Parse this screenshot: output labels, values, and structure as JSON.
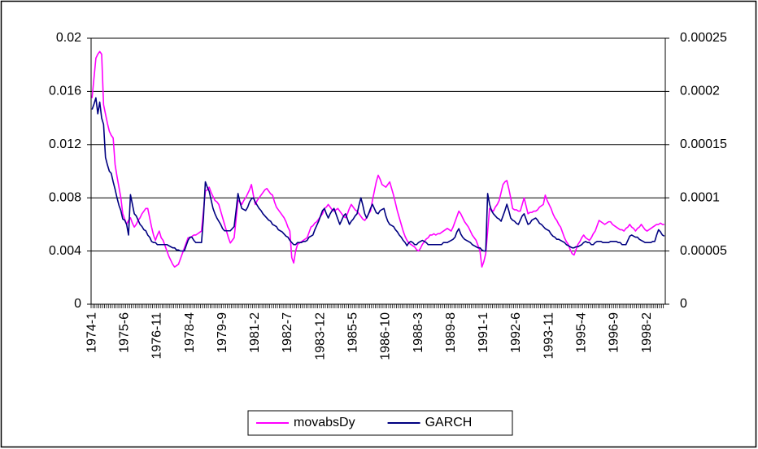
{
  "chart_data": {
    "type": "line",
    "categories": [
      "1974-1",
      null,
      null,
      null,
      null,
      null,
      null,
      null,
      null,
      null,
      null,
      null,
      null,
      null,
      null,
      null,
      null,
      "1975-6",
      null,
      null,
      null,
      null,
      null,
      null,
      null,
      null,
      null,
      null,
      null,
      null,
      null,
      null,
      null,
      null,
      "1976-11",
      null,
      null,
      null,
      null,
      null,
      null,
      null,
      null,
      null,
      null,
      null,
      null,
      null,
      null,
      null,
      null,
      "1978-4",
      null,
      null,
      null,
      null,
      null,
      null,
      null,
      null,
      null,
      null,
      null,
      null,
      null,
      null,
      null,
      null,
      "1979-9",
      null,
      null,
      null,
      null,
      null,
      null,
      null,
      null,
      null,
      null,
      null,
      null,
      null,
      null,
      null,
      null,
      "1981-2",
      null,
      null,
      null,
      null,
      null,
      null,
      null,
      null,
      null,
      null,
      null,
      null,
      null,
      null,
      null,
      null,
      "1982-7",
      null,
      null,
      null,
      null,
      null,
      null,
      null,
      null,
      null,
      null,
      null,
      null,
      null,
      null,
      null,
      null,
      "1983-12",
      null,
      null,
      null,
      null,
      null,
      null,
      null,
      null,
      null,
      null,
      null,
      null,
      null,
      null,
      null,
      null,
      "1985-5",
      null,
      null,
      null,
      null,
      null,
      null,
      null,
      null,
      null,
      null,
      null,
      null,
      null,
      null,
      null,
      null,
      "1986-10",
      null,
      null,
      null,
      null,
      null,
      null,
      null,
      null,
      null,
      null,
      null,
      null,
      null,
      null,
      null,
      null,
      "1988-3",
      null,
      null,
      null,
      null,
      null,
      null,
      null,
      null,
      null,
      null,
      null,
      null,
      null,
      null,
      null,
      null,
      "1989-8",
      null,
      null,
      null,
      null,
      null,
      null,
      null,
      null,
      null,
      null,
      null,
      null,
      null,
      null,
      null,
      null,
      "1991-1",
      null,
      null,
      null,
      null,
      null,
      null,
      null,
      null,
      null,
      null,
      null,
      null,
      null,
      null,
      null,
      null,
      "1992-6",
      null,
      null,
      null,
      null,
      null,
      null,
      null,
      null,
      null,
      null,
      null,
      null,
      null,
      null,
      null,
      null,
      "1993-11",
      null,
      null,
      null,
      null,
      null,
      null,
      null,
      null,
      null,
      null,
      null,
      null,
      null,
      null,
      null,
      null,
      "1995-4",
      null,
      null,
      null,
      null,
      null,
      null,
      null,
      null,
      null,
      null,
      null,
      null,
      null,
      null,
      null,
      null,
      "1996-9",
      null,
      null,
      null,
      null,
      null,
      null,
      null,
      null,
      null,
      null,
      null,
      null,
      null,
      null,
      null,
      null,
      "1998-2",
      null,
      null,
      null,
      null,
      null,
      null,
      null,
      null,
      null
    ],
    "series": [
      {
        "name": "movabsDy",
        "color": "#ff00ff",
        "values": [
          0.0155,
          0.017,
          0.0185,
          0.0188,
          0.019,
          0.0188,
          0.015,
          0.0143,
          0.0136,
          0.013,
          0.0127,
          0.0125,
          0.0105,
          0.0096,
          0.0088,
          0.008,
          0.0068,
          0.0064,
          0.006,
          0.0063,
          0.0065,
          0.0061,
          0.0058,
          0.006,
          0.0063,
          0.0065,
          0.0068,
          0.007,
          0.0072,
          0.0072,
          0.0065,
          0.0058,
          0.0052,
          0.0048,
          0.0052,
          0.0055,
          0.005,
          0.0048,
          0.0044,
          0.004,
          0.0036,
          0.0033,
          0.003,
          0.0028,
          0.0029,
          0.003,
          0.0034,
          0.0038,
          0.0042,
          0.0046,
          0.005,
          0.005,
          0.0051,
          0.0052,
          0.0052,
          0.0053,
          0.0054,
          0.0055,
          0.007,
          0.0085,
          0.0086,
          0.0088,
          0.0084,
          0.0081,
          0.0078,
          0.0077,
          0.0075,
          0.007,
          0.0065,
          0.006,
          0.0055,
          0.005,
          0.0046,
          0.0048,
          0.005,
          0.0064,
          0.0078,
          0.0077,
          0.0075,
          0.0078,
          0.008,
          0.0083,
          0.0086,
          0.009,
          0.0082,
          0.0075,
          0.0078,
          0.008,
          0.0082,
          0.0084,
          0.0086,
          0.0087,
          0.0085,
          0.0083,
          0.0082,
          0.0077,
          0.0073,
          0.0071,
          0.0069,
          0.0067,
          0.0065,
          0.0062,
          0.0058,
          0.0055,
          0.0035,
          0.0031,
          0.004,
          0.0045,
          0.0046,
          0.0047,
          0.0048,
          0.0049,
          0.005,
          0.0054,
          0.0058,
          0.0059,
          0.0061,
          0.0062,
          0.0064,
          0.0066,
          0.0068,
          0.0072,
          0.0073,
          0.0075,
          0.0073,
          0.0071,
          0.007,
          0.0071,
          0.0072,
          0.007,
          0.0068,
          0.0066,
          0.0065,
          0.0068,
          0.0072,
          0.0075,
          0.0073,
          0.0071,
          0.007,
          0.0068,
          0.0066,
          0.0064,
          0.0063,
          0.0065,
          0.0068,
          0.007,
          0.0078,
          0.0085,
          0.0092,
          0.0097,
          0.0094,
          0.009,
          0.0089,
          0.0088,
          0.009,
          0.0092,
          0.0087,
          0.0082,
          0.0076,
          0.007,
          0.0065,
          0.006,
          0.0055,
          0.0051,
          0.0048,
          0.0046,
          0.0045,
          0.0044,
          0.0043,
          0.0041,
          0.004,
          0.0042,
          0.0045,
          0.0047,
          0.0049,
          0.005,
          0.0052,
          0.0052,
          0.0053,
          0.0052,
          0.0053,
          0.0053,
          0.0054,
          0.0055,
          0.0056,
          0.0057,
          0.0056,
          0.0055,
          0.0058,
          0.0062,
          0.0066,
          0.007,
          0.0068,
          0.0065,
          0.0062,
          0.006,
          0.0058,
          0.0055,
          0.0052,
          0.005,
          0.0048,
          0.0044,
          0.004,
          0.0028,
          0.0032,
          0.0038,
          0.0055,
          0.0072,
          0.0071,
          0.007,
          0.0073,
          0.0075,
          0.0078,
          0.0084,
          0.009,
          0.0092,
          0.0093,
          0.0087,
          0.008,
          0.0072,
          0.0071,
          0.0071,
          0.007,
          0.007,
          0.0075,
          0.008,
          0.0074,
          0.0068,
          0.0069,
          0.0069,
          0.007,
          0.007,
          0.0071,
          0.0073,
          0.0074,
          0.0075,
          0.0082,
          0.0078,
          0.0075,
          0.0072,
          0.0068,
          0.0065,
          0.0063,
          0.006,
          0.0058,
          0.0054,
          0.005,
          0.0047,
          0.0045,
          0.0041,
          0.0038,
          0.0037,
          0.0041,
          0.0045,
          0.0047,
          0.005,
          0.0052,
          0.005,
          0.0049,
          0.0048,
          0.005,
          0.0053,
          0.0055,
          0.0059,
          0.0063,
          0.0062,
          0.0061,
          0.006,
          0.0061,
          0.0062,
          0.0062,
          0.006,
          0.0059,
          0.0058,
          0.0057,
          0.0056,
          0.0056,
          0.0055,
          0.0057,
          0.0058,
          0.006,
          0.0058,
          0.0057,
          0.0055,
          0.0057,
          0.0058,
          0.006,
          0.0058,
          0.0056,
          0.0055,
          0.0056,
          0.0057,
          0.0058,
          0.0059,
          0.006,
          0.006,
          0.0061,
          0.006,
          0.006
        ]
      },
      {
        "name": "GARCH",
        "color": "#000080",
        "axis": "y2",
        "values": [
          0.000183,
          0.000188,
          0.000194,
          0.000179,
          0.00019,
          0.000175,
          0.000169,
          0.000138,
          0.000131,
          0.000125,
          0.000123,
          0.000115,
          0.000108,
          0.0001,
          9.3e-05,
          8.8e-05,
          8e-05,
          7.9e-05,
          7.5e-05,
          6.5e-05,
          0.000103,
          9.4e-05,
          8.5e-05,
          8.3e-05,
          7.9e-05,
          7.5e-05,
          7.3e-05,
          7e-05,
          6.9e-05,
          6.5e-05,
          6.3e-05,
          5.9e-05,
          5.8e-05,
          5.8e-05,
          5.6e-05,
          5.6e-05,
          5.6e-05,
          5.6e-05,
          5.6e-05,
          5.6e-05,
          5.5e-05,
          5.4e-05,
          5.3e-05,
          5.3e-05,
          5.1e-05,
          5.1e-05,
          5e-05,
          5e-05,
          5e-05,
          5.5e-05,
          6e-05,
          6.3e-05,
          6.3e-05,
          6e-05,
          5.8e-05,
          5.8e-05,
          5.8e-05,
          5.8e-05,
          8.1e-05,
          0.000115,
          0.00011,
          0.000106,
          9.8e-05,
          9e-05,
          8.5e-05,
          8.1e-05,
          7.8e-05,
          7.5e-05,
          7.1e-05,
          6.9e-05,
          6.9e-05,
          6.9e-05,
          6.9e-05,
          7.1e-05,
          7.3e-05,
          8.8e-05,
          0.000104,
          9.6e-05,
          9e-05,
          8.9e-05,
          8.8e-05,
          9.1e-05,
          9.6e-05,
          9.9e-05,
          0.0001,
          9.6e-05,
          9.3e-05,
          9e-05,
          8.8e-05,
          8.5e-05,
          8.3e-05,
          8.1e-05,
          7.9e-05,
          7.8e-05,
          7.5e-05,
          7.4e-05,
          7.3e-05,
          7e-05,
          6.9e-05,
          6.8e-05,
          6.6e-05,
          6.4e-05,
          6.3e-05,
          6e-05,
          5.8e-05,
          5.6e-05,
          5.6e-05,
          5.8e-05,
          5.8e-05,
          5.8e-05,
          5.9e-05,
          5.9e-05,
          6e-05,
          6.3e-05,
          6.4e-05,
          6.5e-05,
          7e-05,
          7.4e-05,
          7.8e-05,
          8.3e-05,
          8.8e-05,
          9e-05,
          8.5e-05,
          8.1e-05,
          8.5e-05,
          8.8e-05,
          9e-05,
          8.5e-05,
          8e-05,
          7.5e-05,
          7.9e-05,
          8.3e-05,
          8.5e-05,
          8e-05,
          7.5e-05,
          7.8e-05,
          8e-05,
          8.3e-05,
          8.5e-05,
          9.3e-05,
          0.0001,
          9.3e-05,
          8.5e-05,
          8.1e-05,
          8.5e-05,
          9e-05,
          9.4e-05,
          9e-05,
          8.6e-05,
          8.5e-05,
          8.8e-05,
          8.9e-05,
          9e-05,
          8.3e-05,
          7.8e-05,
          7.5e-05,
          7.4e-05,
          7.3e-05,
          7e-05,
          6.8e-05,
          6.5e-05,
          6.3e-05,
          6e-05,
          5.8e-05,
          5.5e-05,
          5.8e-05,
          5.9e-05,
          5.8e-05,
          5.6e-05,
          5.6e-05,
          5.8e-05,
          5.9e-05,
          6e-05,
          5.9e-05,
          5.8e-05,
          5.6e-05,
          5.6e-05,
          5.6e-05,
          5.6e-05,
          5.6e-05,
          5.6e-05,
          5.6e-05,
          5.6e-05,
          5.8e-05,
          5.8e-05,
          5.8e-05,
          5.9e-05,
          6e-05,
          6.1e-05,
          6.3e-05,
          6.8e-05,
          7.1e-05,
          6.6e-05,
          6.3e-05,
          6.1e-05,
          6e-05,
          5.9e-05,
          5.8e-05,
          5.6e-05,
          5.5e-05,
          5.4e-05,
          5.3e-05,
          5.3e-05,
          5.1e-05,
          5e-05,
          5e-05,
          0.000104,
          9.4e-05,
          8.8e-05,
          8.5e-05,
          8.3e-05,
          8.1e-05,
          8e-05,
          7.8e-05,
          8.3e-05,
          8.8e-05,
          9.4e-05,
          8.8e-05,
          8.1e-05,
          7.9e-05,
          7.8e-05,
          7.6e-05,
          7.5e-05,
          7.9e-05,
          8.3e-05,
          8.5e-05,
          8e-05,
          7.5e-05,
          7.6e-05,
          7.9e-05,
          8e-05,
          8.1e-05,
          7.9e-05,
          7.6e-05,
          7.5e-05,
          7.3e-05,
          7.1e-05,
          7e-05,
          6.9e-05,
          6.6e-05,
          6.4e-05,
          6.3e-05,
          6.1e-05,
          6.1e-05,
          6e-05,
          5.9e-05,
          5.8e-05,
          5.6e-05,
          5.5e-05,
          5.4e-05,
          5.3e-05,
          5.3e-05,
          5.4e-05,
          5.4e-05,
          5.5e-05,
          5.6e-05,
          5.8e-05,
          5.9e-05,
          5.8e-05,
          5.8e-05,
          5.6e-05,
          5.6e-05,
          5.8e-05,
          5.9e-05,
          5.9e-05,
          5.9e-05,
          5.8e-05,
          5.8e-05,
          5.8e-05,
          5.8e-05,
          5.9e-05,
          5.9e-05,
          5.9e-05,
          5.9e-05,
          5.8e-05,
          5.8e-05,
          5.6e-05,
          5.6e-05,
          5.6e-05,
          6e-05,
          6.4e-05,
          6.5e-05,
          6.4e-05,
          6.3e-05,
          6.3e-05,
          6.1e-05,
          6e-05,
          5.9e-05,
          5.8e-05,
          5.8e-05,
          5.8e-05,
          5.8e-05,
          5.9e-05,
          5.9e-05,
          6.5e-05,
          7e-05,
          6.8e-05,
          6.5e-05,
          6.4e-05
        ]
      }
    ],
    "ylim": [
      0,
      0.02
    ],
    "yticks": [
      0,
      0.004,
      0.008,
      0.012,
      0.016,
      0.02
    ],
    "y2lim": [
      0,
      0.00025
    ],
    "y2ticks": [
      0,
      5e-05,
      0.0001,
      0.00015,
      0.0002,
      0.00025
    ],
    "grid": true,
    "legend": "bottom"
  }
}
